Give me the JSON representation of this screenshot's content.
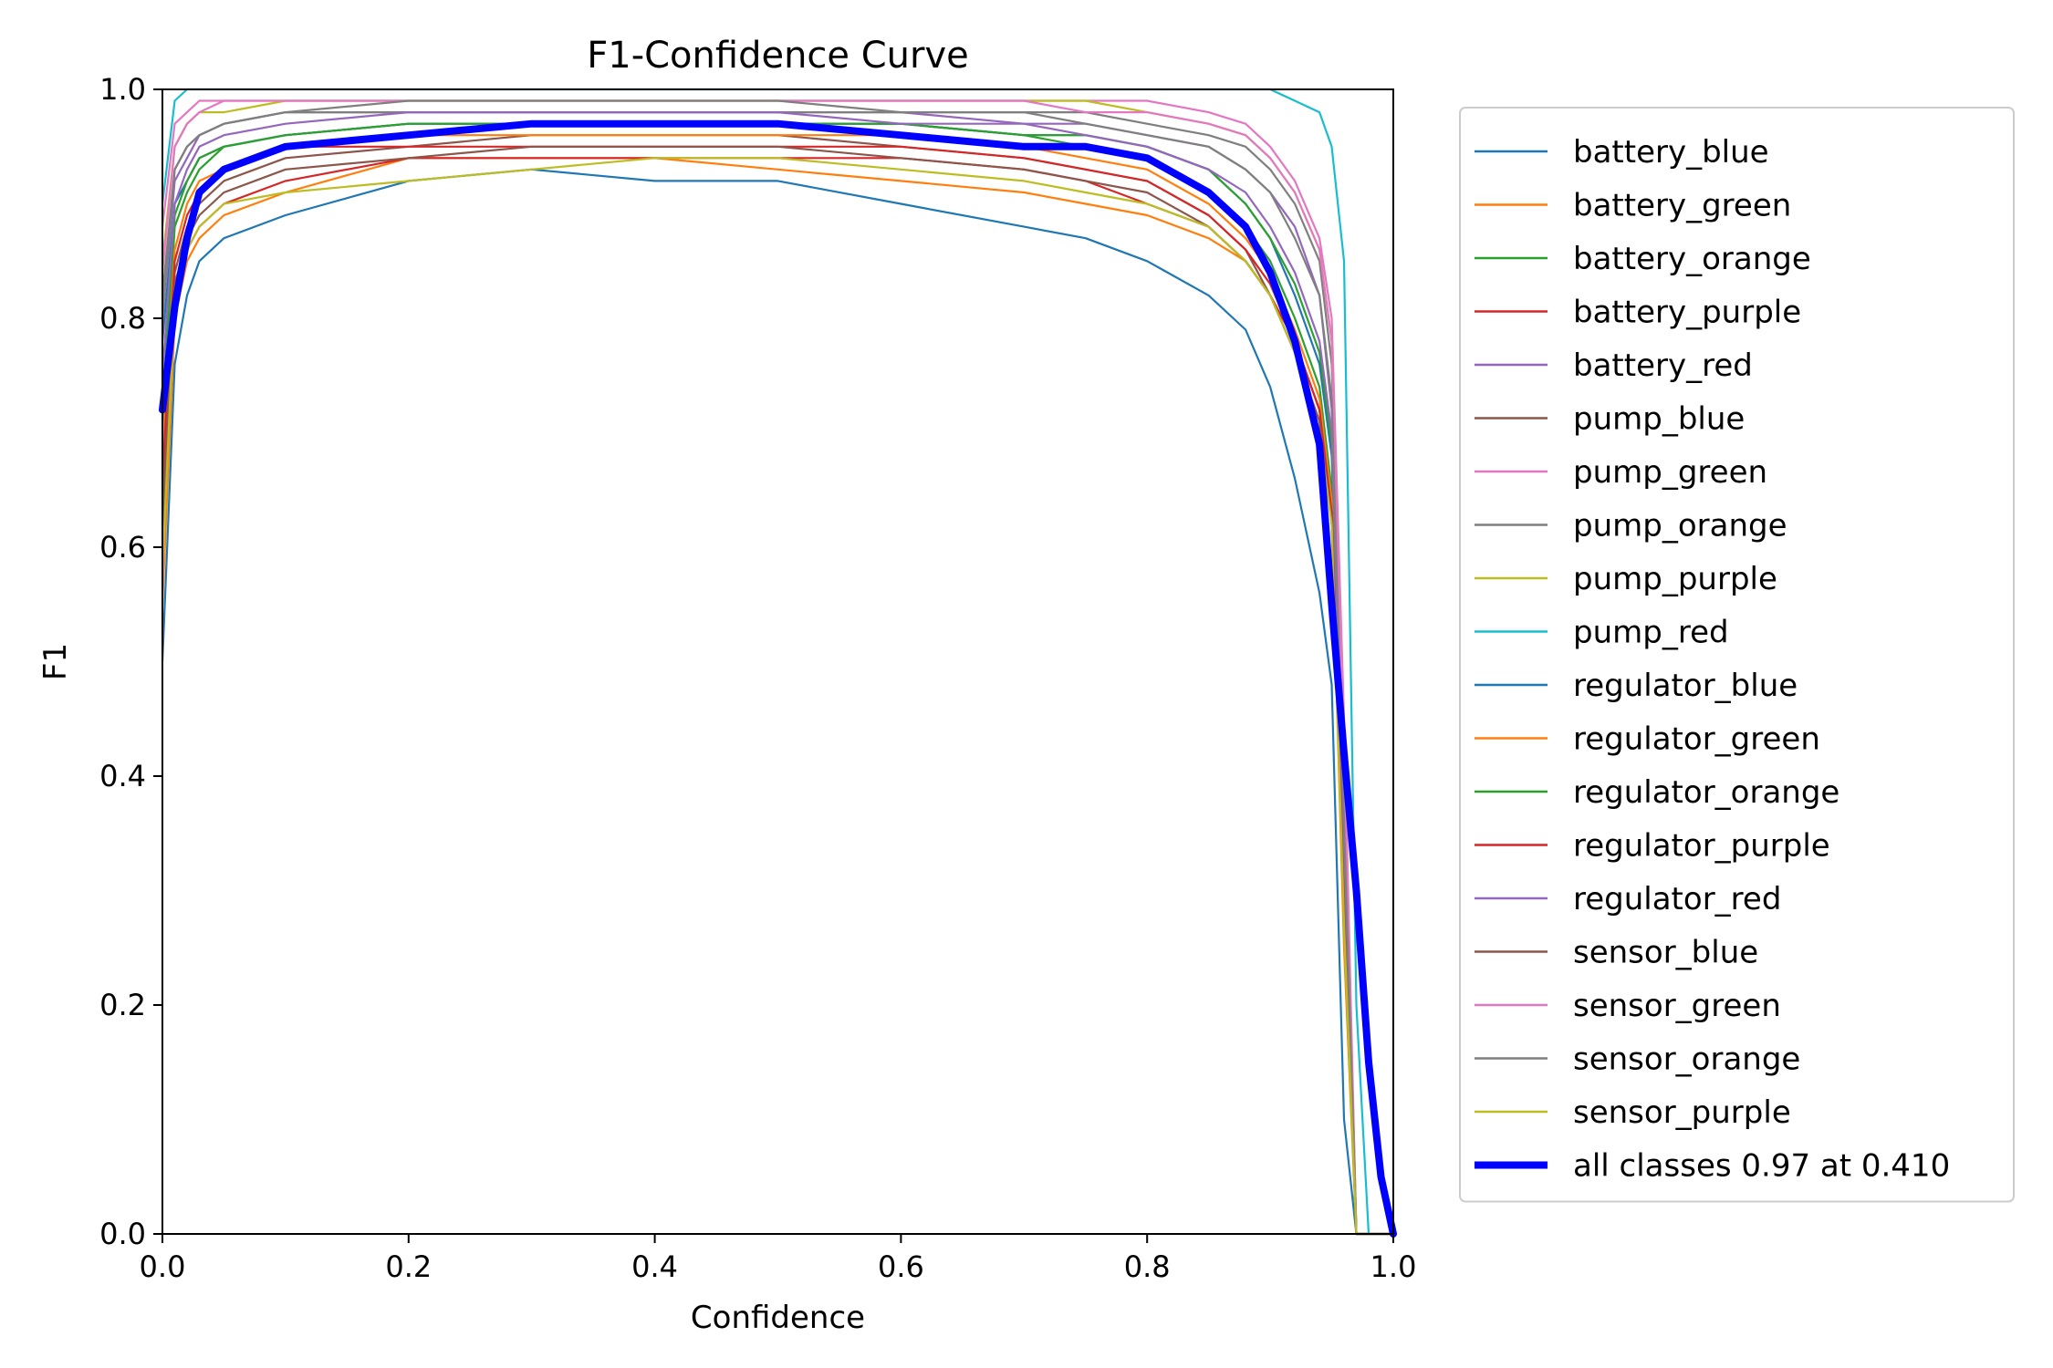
{
  "chart_data": {
    "type": "line",
    "title": "F1-Confidence Curve",
    "xlabel": "Confidence",
    "ylabel": "F1",
    "xlim": [
      0,
      1
    ],
    "ylim": [
      0,
      1
    ],
    "xticks": [
      "0.0",
      "0.2",
      "0.4",
      "0.6",
      "0.8",
      "1.0"
    ],
    "yticks": [
      "0.0",
      "0.2",
      "0.4",
      "0.6",
      "0.8",
      "1.0"
    ],
    "grid": false,
    "legend_position": "outside-right",
    "x": [
      0.0,
      0.01,
      0.02,
      0.03,
      0.05,
      0.1,
      0.2,
      0.3,
      0.4,
      0.5,
      0.6,
      0.7,
      0.75,
      0.8,
      0.85,
      0.88,
      0.9,
      0.92,
      0.94,
      0.95,
      0.96,
      0.97,
      0.98,
      0.99,
      1.0
    ],
    "series": [
      {
        "name": "battery_blue",
        "color": "#1f77b4",
        "width": 1,
        "values": [
          0.5,
          0.76,
          0.82,
          0.85,
          0.87,
          0.89,
          0.92,
          0.93,
          0.92,
          0.92,
          0.9,
          0.88,
          0.87,
          0.85,
          0.82,
          0.79,
          0.74,
          0.66,
          0.56,
          0.48,
          0.1,
          0.0,
          0.0,
          0.0,
          0.0
        ]
      },
      {
        "name": "battery_green",
        "color": "#ff7f0e",
        "width": 1,
        "values": [
          0.55,
          0.8,
          0.85,
          0.87,
          0.89,
          0.91,
          0.94,
          0.94,
          0.94,
          0.93,
          0.92,
          0.91,
          0.9,
          0.89,
          0.87,
          0.85,
          0.82,
          0.78,
          0.72,
          0.62,
          0.25,
          0.0,
          0.0,
          0.0,
          0.0
        ]
      },
      {
        "name": "battery_orange",
        "color": "#2ca02c",
        "width": 1,
        "values": [
          0.7,
          0.88,
          0.91,
          0.93,
          0.95,
          0.96,
          0.97,
          0.97,
          0.97,
          0.97,
          0.97,
          0.96,
          0.95,
          0.94,
          0.91,
          0.88,
          0.85,
          0.8,
          0.74,
          0.65,
          0.3,
          0.0,
          0.0,
          0.0,
          0.0
        ]
      },
      {
        "name": "battery_purple",
        "color": "#d62728",
        "width": 1,
        "values": [
          0.6,
          0.82,
          0.86,
          0.88,
          0.9,
          0.92,
          0.94,
          0.94,
          0.94,
          0.94,
          0.94,
          0.93,
          0.92,
          0.9,
          0.88,
          0.85,
          0.82,
          0.78,
          0.72,
          0.64,
          0.28,
          0.0,
          0.0,
          0.0,
          0.0
        ]
      },
      {
        "name": "battery_red",
        "color": "#9467bd",
        "width": 1,
        "values": [
          0.8,
          0.92,
          0.94,
          0.96,
          0.97,
          0.98,
          0.98,
          0.98,
          0.98,
          0.98,
          0.98,
          0.97,
          0.97,
          0.96,
          0.95,
          0.93,
          0.91,
          0.88,
          0.82,
          0.72,
          0.35,
          0.0,
          0.0,
          0.0,
          0.0
        ]
      },
      {
        "name": "pump_blue",
        "color": "#8c564b",
        "width": 1,
        "values": [
          0.65,
          0.84,
          0.88,
          0.9,
          0.92,
          0.94,
          0.95,
          0.96,
          0.96,
          0.96,
          0.95,
          0.94,
          0.93,
          0.92,
          0.89,
          0.86,
          0.82,
          0.77,
          0.71,
          0.63,
          0.28,
          0.0,
          0.0,
          0.0,
          0.0
        ]
      },
      {
        "name": "pump_green",
        "color": "#e377c2",
        "width": 1,
        "values": [
          0.88,
          0.97,
          0.98,
          0.99,
          0.99,
          0.99,
          0.99,
          0.99,
          0.99,
          0.99,
          0.99,
          0.99,
          0.99,
          0.99,
          0.98,
          0.97,
          0.95,
          0.92,
          0.87,
          0.8,
          0.45,
          0.0,
          0.0,
          0.0,
          0.0
        ]
      },
      {
        "name": "pump_orange",
        "color": "#7f7f7f",
        "width": 1,
        "values": [
          0.82,
          0.93,
          0.95,
          0.96,
          0.97,
          0.98,
          0.98,
          0.98,
          0.98,
          0.98,
          0.98,
          0.98,
          0.98,
          0.97,
          0.96,
          0.95,
          0.93,
          0.9,
          0.85,
          0.76,
          0.4,
          0.0,
          0.0,
          0.0,
          0.0
        ]
      },
      {
        "name": "pump_purple",
        "color": "#bcbd22",
        "width": 1,
        "values": [
          0.85,
          0.95,
          0.97,
          0.98,
          0.98,
          0.99,
          0.99,
          0.99,
          0.99,
          0.99,
          0.99,
          0.99,
          0.99,
          0.98,
          0.97,
          0.96,
          0.94,
          0.91,
          0.86,
          0.78,
          0.42,
          0.0,
          0.0,
          0.0,
          0.0
        ]
      },
      {
        "name": "pump_red",
        "color": "#17becf",
        "width": 1,
        "values": [
          0.9,
          0.99,
          1.0,
          1.0,
          1.0,
          1.0,
          1.0,
          1.0,
          1.0,
          1.0,
          1.0,
          1.0,
          1.0,
          1.0,
          1.0,
          1.0,
          1.0,
          0.99,
          0.98,
          0.95,
          0.85,
          0.2,
          0.0,
          0.0,
          0.0
        ]
      },
      {
        "name": "regulator_blue",
        "color": "#1f77b4",
        "width": 1,
        "values": [
          0.78,
          0.9,
          0.92,
          0.94,
          0.95,
          0.96,
          0.97,
          0.97,
          0.97,
          0.97,
          0.97,
          0.96,
          0.96,
          0.95,
          0.93,
          0.9,
          0.87,
          0.82,
          0.76,
          0.68,
          0.32,
          0.0,
          0.0,
          0.0,
          0.0
        ]
      },
      {
        "name": "regulator_green",
        "color": "#ff7f0e",
        "width": 1,
        "values": [
          0.68,
          0.86,
          0.9,
          0.92,
          0.93,
          0.95,
          0.96,
          0.96,
          0.96,
          0.96,
          0.96,
          0.95,
          0.94,
          0.93,
          0.9,
          0.87,
          0.84,
          0.79,
          0.73,
          0.64,
          0.3,
          0.0,
          0.0,
          0.0,
          0.0
        ]
      },
      {
        "name": "regulator_orange",
        "color": "#2ca02c",
        "width": 1,
        "values": [
          0.72,
          0.89,
          0.92,
          0.94,
          0.95,
          0.96,
          0.97,
          0.97,
          0.97,
          0.97,
          0.97,
          0.96,
          0.96,
          0.95,
          0.93,
          0.9,
          0.87,
          0.83,
          0.77,
          0.69,
          0.33,
          0.0,
          0.0,
          0.0,
          0.0
        ]
      },
      {
        "name": "regulator_purple",
        "color": "#d62728",
        "width": 1,
        "values": [
          0.66,
          0.85,
          0.89,
          0.91,
          0.93,
          0.95,
          0.95,
          0.95,
          0.95,
          0.95,
          0.95,
          0.94,
          0.93,
          0.92,
          0.89,
          0.86,
          0.83,
          0.78,
          0.72,
          0.63,
          0.3,
          0.0,
          0.0,
          0.0,
          0.0
        ]
      },
      {
        "name": "regulator_red",
        "color": "#9467bd",
        "width": 1,
        "values": [
          0.75,
          0.9,
          0.93,
          0.95,
          0.96,
          0.97,
          0.98,
          0.98,
          0.98,
          0.98,
          0.97,
          0.97,
          0.96,
          0.95,
          0.93,
          0.91,
          0.88,
          0.84,
          0.78,
          0.7,
          0.34,
          0.0,
          0.0,
          0.0,
          0.0
        ]
      },
      {
        "name": "sensor_blue",
        "color": "#8c564b",
        "width": 1,
        "values": [
          0.62,
          0.83,
          0.87,
          0.89,
          0.91,
          0.93,
          0.94,
          0.95,
          0.95,
          0.95,
          0.94,
          0.93,
          0.92,
          0.91,
          0.88,
          0.85,
          0.82,
          0.77,
          0.71,
          0.62,
          0.28,
          0.0,
          0.0,
          0.0,
          0.0
        ]
      },
      {
        "name": "sensor_green",
        "color": "#e377c2",
        "width": 1,
        "values": [
          0.84,
          0.95,
          0.97,
          0.98,
          0.99,
          0.99,
          0.99,
          0.99,
          0.99,
          0.99,
          0.99,
          0.99,
          0.98,
          0.98,
          0.97,
          0.96,
          0.94,
          0.91,
          0.86,
          0.78,
          0.42,
          0.0,
          0.0,
          0.0,
          0.0
        ]
      },
      {
        "name": "sensor_orange",
        "color": "#7f7f7f",
        "width": 1,
        "values": [
          0.8,
          0.93,
          0.95,
          0.96,
          0.97,
          0.98,
          0.99,
          0.99,
          0.99,
          0.99,
          0.98,
          0.98,
          0.97,
          0.96,
          0.95,
          0.93,
          0.91,
          0.87,
          0.82,
          0.73,
          0.36,
          0.0,
          0.0,
          0.0,
          0.0
        ]
      },
      {
        "name": "sensor_purple",
        "color": "#bcbd22",
        "width": 1,
        "values": [
          0.58,
          0.82,
          0.86,
          0.88,
          0.9,
          0.91,
          0.92,
          0.93,
          0.94,
          0.94,
          0.93,
          0.92,
          0.91,
          0.9,
          0.88,
          0.85,
          0.82,
          0.77,
          0.7,
          0.62,
          0.27,
          0.0,
          0.0,
          0.0,
          0.0
        ]
      },
      {
        "name": "all classes 0.97 at 0.410",
        "color": "#0000ff",
        "width": 3,
        "values": [
          0.72,
          0.81,
          0.87,
          0.91,
          0.93,
          0.95,
          0.96,
          0.97,
          0.97,
          0.97,
          0.96,
          0.95,
          0.95,
          0.94,
          0.91,
          0.88,
          0.84,
          0.78,
          0.69,
          0.55,
          0.42,
          0.3,
          0.15,
          0.05,
          0.0
        ]
      }
    ]
  }
}
